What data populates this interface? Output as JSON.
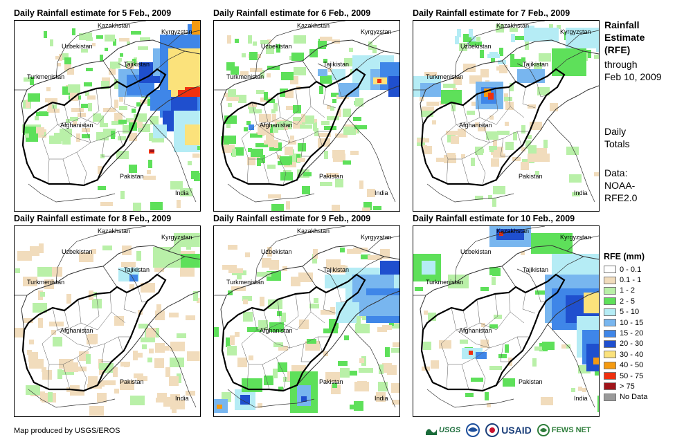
{
  "panels": [
    {
      "title": "Daily Rainfall estimate for 5 Feb., 2009"
    },
    {
      "title": "Daily Rainfall estimate for 6 Feb., 2009"
    },
    {
      "title": "Daily Rainfall estimate for 7 Feb., 2009"
    },
    {
      "title": "Daily Rainfall estimate for 8 Feb., 2009"
    },
    {
      "title": "Daily Rainfall estimate for 9 Feb., 2009"
    },
    {
      "title": "Daily Rainfall estimate for 10 Feb., 2009"
    }
  ],
  "map_labels": {
    "kazakhstan": "Kazakhstan",
    "kyrgyzstan": "Kyrgyzstan",
    "uzbekistan": "Uzbekistan",
    "tajikistan": "Tajikistan",
    "turkmenistan": "Turkmenistan",
    "afghanistan": "Afghanistan",
    "pakistan": "Pakistan",
    "india": "India"
  },
  "sidebar": {
    "line1": "Rainfall",
    "line2": "Estimate",
    "line3": "(RFE)",
    "line4": "through",
    "line5": "Feb 10, 2009",
    "daily1": "Daily",
    "daily2": "Totals",
    "data1": "Data:",
    "data2": "NOAA-",
    "data3": "RFE2.0"
  },
  "legend": {
    "title": "RFE (mm)",
    "items": [
      {
        "label": "0 - 0.1",
        "color": "#ffffff"
      },
      {
        "label": "0.1 - 1",
        "color": "#f1dcbc"
      },
      {
        "label": "1 - 2",
        "color": "#b9f0a8"
      },
      {
        "label": "2 - 5",
        "color": "#5ee05a"
      },
      {
        "label": "5 - 10",
        "color": "#b5ecf5"
      },
      {
        "label": "10 - 15",
        "color": "#78b6ef"
      },
      {
        "label": "15 - 20",
        "color": "#3f86e8"
      },
      {
        "label": "20 - 30",
        "color": "#1f4fce"
      },
      {
        "label": "30 - 40",
        "color": "#fbe27b"
      },
      {
        "label": "40 - 50",
        "color": "#f59a10"
      },
      {
        "label": "50 - 75",
        "color": "#f0300f"
      },
      {
        "label": "> 75",
        "color": "#a0141a"
      },
      {
        "label": "No Data",
        "color": "#9a9a9a"
      }
    ]
  },
  "footer": {
    "credit": "Map produced by USGS/EROS",
    "logos": [
      "USGS",
      "NOAA",
      "USAID",
      "FEWS NET"
    ]
  }
}
